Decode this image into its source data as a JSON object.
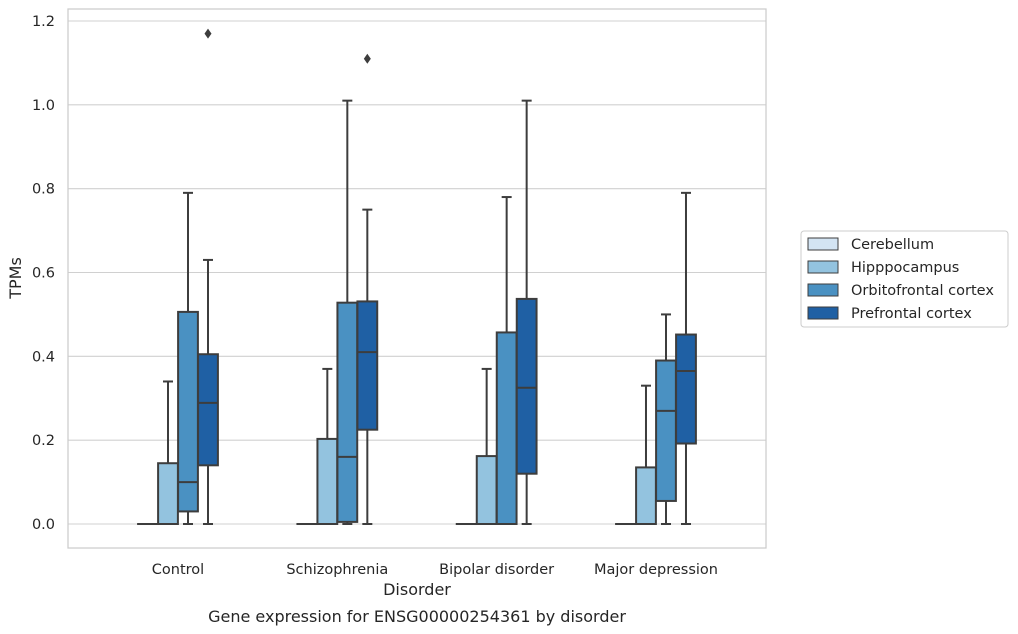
{
  "chart_data": {
    "type": "box",
    "title": "Gene expression for ENSG00000254361 by disorder",
    "xlabel": "Disorder",
    "ylabel": "TPMs",
    "ylim": [
      -0.057,
      1.232
    ],
    "yticks": [
      "0.0",
      "0.2",
      "0.4",
      "0.6",
      "0.8",
      "1.0",
      "1.2"
    ],
    "ytick_values": [
      0.0,
      0.2,
      0.4,
      0.6,
      0.8,
      1.0,
      1.2
    ],
    "grid": "horizontal",
    "legend_position": "right",
    "categories": [
      "Control",
      "Schizophrenia",
      "Bipolar disorder",
      "Major depression"
    ],
    "series": [
      {
        "name": "Cerebellum",
        "color": "#d3e4f3",
        "boxes": [
          {
            "whislo": 0.0,
            "q1": 0.0,
            "med": 0.0,
            "q3": 0.0,
            "whishi": 0.0,
            "fliers": []
          },
          {
            "whislo": 0.0,
            "q1": 0.0,
            "med": 0.0,
            "q3": 0.0,
            "whishi": 0.0,
            "fliers": []
          },
          {
            "whislo": 0.0,
            "q1": 0.0,
            "med": 0.0,
            "q3": 0.0,
            "whishi": 0.0,
            "fliers": []
          },
          {
            "whislo": 0.0,
            "q1": 0.0,
            "med": 0.0,
            "q3": 0.0,
            "whishi": 0.0,
            "fliers": []
          }
        ]
      },
      {
        "name": "Hipppocampus",
        "color": "#93c3df",
        "boxes": [
          {
            "whislo": 0.0,
            "q1": 0.0,
            "med": 0.0,
            "q3": 0.145,
            "whishi": 0.34,
            "fliers": []
          },
          {
            "whislo": 0.0,
            "q1": 0.0,
            "med": 0.0,
            "q3": 0.203,
            "whishi": 0.37,
            "fliers": []
          },
          {
            "whislo": 0.0,
            "q1": 0.0,
            "med": 0.0,
            "q3": 0.162,
            "whishi": 0.37,
            "fliers": []
          },
          {
            "whislo": 0.0,
            "q1": 0.0,
            "med": 0.0,
            "q3": 0.135,
            "whishi": 0.33,
            "fliers": []
          }
        ]
      },
      {
        "name": "Orbitofrontal cortex",
        "color": "#4a91c2",
        "boxes": [
          {
            "whislo": 0.0,
            "q1": 0.03,
            "med": 0.1,
            "q3": 0.506,
            "whishi": 0.79,
            "fliers": []
          },
          {
            "whislo": 0.0,
            "q1": 0.005,
            "med": 0.16,
            "q3": 0.528,
            "whishi": 1.01,
            "fliers": []
          },
          {
            "whislo": 0.0,
            "q1": 0.0,
            "med": 0.0,
            "q3": 0.457,
            "whishi": 0.78,
            "fliers": []
          },
          {
            "whislo": 0.0,
            "q1": 0.055,
            "med": 0.27,
            "q3": 0.39,
            "whishi": 0.5,
            "fliers": []
          }
        ]
      },
      {
        "name": "Prefrontal cortex",
        "color": "#1f60a4",
        "boxes": [
          {
            "whislo": 0.0,
            "q1": 0.14,
            "med": 0.289,
            "q3": 0.405,
            "whishi": 0.63,
            "fliers": [
              1.17
            ]
          },
          {
            "whislo": 0.0,
            "q1": 0.225,
            "med": 0.41,
            "q3": 0.531,
            "whishi": 0.75,
            "fliers": [
              1.11
            ]
          },
          {
            "whislo": 0.0,
            "q1": 0.12,
            "med": 0.325,
            "q3": 0.537,
            "whishi": 1.01,
            "fliers": []
          },
          {
            "whislo": 0.0,
            "q1": 0.192,
            "med": 0.365,
            "q3": 0.452,
            "whishi": 0.79,
            "fliers": []
          }
        ]
      }
    ]
  }
}
